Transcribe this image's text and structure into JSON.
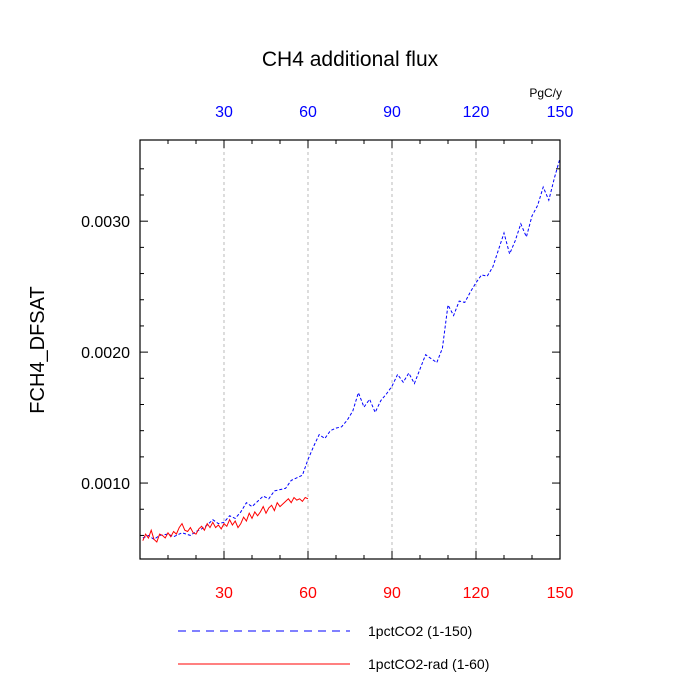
{
  "chart_data": {
    "type": "line",
    "title": "CH4 additional flux",
    "ylabel": "FCH4_DFSAT",
    "xlabel": "",
    "top_axis_unit": "PgC/y",
    "xlim": [
      0,
      150
    ],
    "ylim": [
      0.00042,
      0.00362
    ],
    "x_ticks": [
      30,
      60,
      90,
      120,
      150
    ],
    "x_tick_labels": [
      "30",
      "60",
      "90",
      "120",
      "150"
    ],
    "top_tick_labels": [
      "30",
      "60",
      "90",
      "120",
      "150"
    ],
    "y_ticks": [
      0.001,
      0.002,
      0.003
    ],
    "y_tick_labels": [
      "0.0010",
      "0.0020",
      "0.0030"
    ],
    "grid": "vertical dashed at x ticks",
    "legend_position": "bottom",
    "colors": {
      "bottom_tick_labels": "#ff0000",
      "top_tick_labels": "#0000ff",
      "series_1": "#0000ff",
      "series_2": "#ff0000"
    },
    "series": [
      {
        "name": "1pctCO2 (1-150)",
        "style": "dashed",
        "color": "#0000ff",
        "points": [
          [
            1,
            0.00058
          ],
          [
            3,
            0.0006
          ],
          [
            5,
            0.00057
          ],
          [
            7,
            0.0006
          ],
          [
            10,
            0.00061
          ],
          [
            12,
            0.00059
          ],
          [
            15,
            0.00062
          ],
          [
            18,
            0.0006
          ],
          [
            20,
            0.00063
          ],
          [
            22,
            0.00065
          ],
          [
            24,
            0.00068
          ],
          [
            26,
            0.00072
          ],
          [
            28,
            0.00069
          ],
          [
            30,
            0.0007
          ],
          [
            32,
            0.00075
          ],
          [
            34,
            0.00073
          ],
          [
            36,
            0.00078
          ],
          [
            38,
            0.00085
          ],
          [
            40,
            0.00082
          ],
          [
            42,
            0.00086
          ],
          [
            44,
            0.0009
          ],
          [
            46,
            0.00088
          ],
          [
            48,
            0.00094
          ],
          [
            50,
            0.00095
          ],
          [
            52,
            0.00096
          ],
          [
            54,
            0.00102
          ],
          [
            56,
            0.00104
          ],
          [
            58,
            0.00106
          ],
          [
            60,
            0.00118
          ],
          [
            62,
            0.00128
          ],
          [
            64,
            0.00137
          ],
          [
            66,
            0.00134
          ],
          [
            68,
            0.0014
          ],
          [
            70,
            0.00142
          ],
          [
            72,
            0.00143
          ],
          [
            74,
            0.00148
          ],
          [
            76,
            0.00155
          ],
          [
            78,
            0.00169
          ],
          [
            80,
            0.00158
          ],
          [
            82,
            0.00164
          ],
          [
            84,
            0.00154
          ],
          [
            86,
            0.00163
          ],
          [
            88,
            0.00168
          ],
          [
            90,
            0.00174
          ],
          [
            92,
            0.00183
          ],
          [
            94,
            0.00177
          ],
          [
            96,
            0.00184
          ],
          [
            98,
            0.00176
          ],
          [
            100,
            0.00187
          ],
          [
            102,
            0.00198
          ],
          [
            104,
            0.00195
          ],
          [
            106,
            0.00192
          ],
          [
            108,
            0.00203
          ],
          [
            110,
            0.00236
          ],
          [
            112,
            0.00228
          ],
          [
            114,
            0.00239
          ],
          [
            116,
            0.00238
          ],
          [
            118,
            0.00246
          ],
          [
            120,
            0.00253
          ],
          [
            122,
            0.00259
          ],
          [
            124,
            0.00258
          ],
          [
            126,
            0.00265
          ],
          [
            128,
            0.00278
          ],
          [
            130,
            0.00291
          ],
          [
            132,
            0.00275
          ],
          [
            134,
            0.00285
          ],
          [
            136,
            0.00298
          ],
          [
            138,
            0.00288
          ],
          [
            140,
            0.00304
          ],
          [
            142,
            0.00312
          ],
          [
            144,
            0.00326
          ],
          [
            146,
            0.00316
          ],
          [
            148,
            0.00333
          ],
          [
            150,
            0.00348
          ]
        ]
      },
      {
        "name": "1pctCO2-rad (1-60)",
        "style": "solid",
        "color": "#ff0000",
        "points": [
          [
            1,
            0.00056
          ],
          [
            2,
            0.00061
          ],
          [
            3,
            0.00058
          ],
          [
            4,
            0.00064
          ],
          [
            5,
            0.00057
          ],
          [
            6,
            0.00055
          ],
          [
            7,
            0.00061
          ],
          [
            8,
            0.0006
          ],
          [
            9,
            0.00058
          ],
          [
            10,
            0.00062
          ],
          [
            11,
            0.00059
          ],
          [
            12,
            0.00063
          ],
          [
            13,
            0.00061
          ],
          [
            14,
            0.00066
          ],
          [
            15,
            0.00069
          ],
          [
            16,
            0.00064
          ],
          [
            17,
            0.00063
          ],
          [
            18,
            0.00066
          ],
          [
            19,
            0.00062
          ],
          [
            20,
            0.00061
          ],
          [
            21,
            0.00065
          ],
          [
            22,
            0.00067
          ],
          [
            23,
            0.00064
          ],
          [
            24,
            0.00069
          ],
          [
            25,
            0.00066
          ],
          [
            26,
            0.0007
          ],
          [
            27,
            0.00066
          ],
          [
            28,
            0.00068
          ],
          [
            29,
            0.00065
          ],
          [
            30,
            0.00069
          ],
          [
            31,
            0.00067
          ],
          [
            32,
            0.00072
          ],
          [
            33,
            0.00068
          ],
          [
            34,
            0.00071
          ],
          [
            35,
            0.00066
          ],
          [
            36,
            0.00069
          ],
          [
            37,
            0.00074
          ],
          [
            38,
            0.00071
          ],
          [
            39,
            0.00077
          ],
          [
            40,
            0.00073
          ],
          [
            41,
            0.00078
          ],
          [
            42,
            0.00075
          ],
          [
            43,
            0.00078
          ],
          [
            44,
            0.00082
          ],
          [
            45,
            0.00077
          ],
          [
            46,
            0.00081
          ],
          [
            47,
            0.00083
          ],
          [
            48,
            0.00079
          ],
          [
            49,
            0.00085
          ],
          [
            50,
            0.00082
          ],
          [
            51,
            0.00084
          ],
          [
            52,
            0.00086
          ],
          [
            53,
            0.00088
          ],
          [
            54,
            0.00085
          ],
          [
            55,
            0.00089
          ],
          [
            56,
            0.00087
          ],
          [
            57,
            0.00088
          ],
          [
            58,
            0.00086
          ],
          [
            59,
            0.00089
          ],
          [
            60,
            0.00088
          ]
        ]
      }
    ]
  }
}
